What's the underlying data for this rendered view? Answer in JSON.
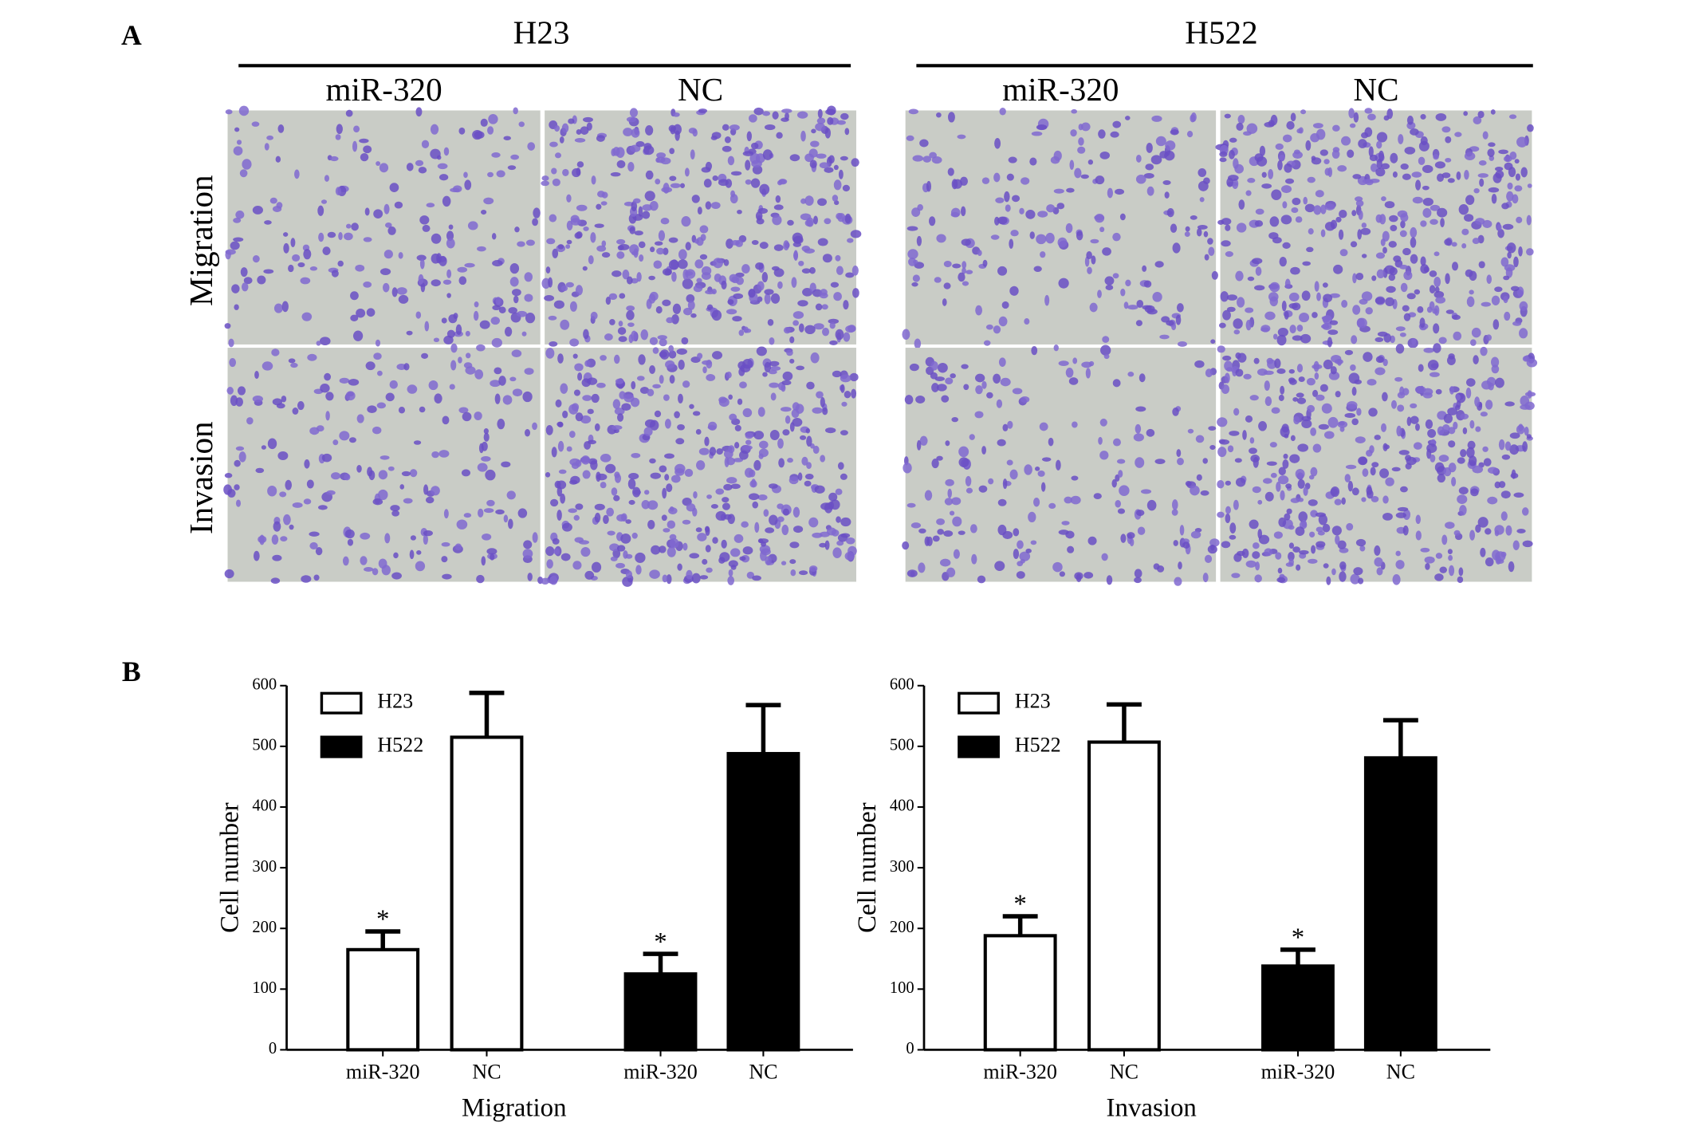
{
  "panel_a": {
    "label": "A",
    "groups": [
      {
        "title": "H23",
        "columns": [
          "miR-320",
          "NC"
        ]
      },
      {
        "title": "H522",
        "columns": [
          "miR-320",
          "NC"
        ]
      }
    ],
    "rows": [
      "Migration",
      "Invasion"
    ]
  },
  "panel_b": {
    "label": "B"
  },
  "chart_data": [
    {
      "type": "bar",
      "xlabel": "Migration",
      "ylabel": "Cell number",
      "categories": [
        "miR-320",
        "NC",
        "miR-320",
        "NC"
      ],
      "ylim": [
        0,
        600
      ],
      "yticks": [
        0,
        100,
        200,
        300,
        400,
        500,
        600
      ],
      "legend": "upper left",
      "series": [
        {
          "name": "H23",
          "color": "#ffffff",
          "values": [
            165,
            515,
            null,
            null
          ],
          "errors": [
            30,
            73,
            null,
            null
          ],
          "significance": [
            "*",
            null,
            null,
            null
          ]
        },
        {
          "name": "H522",
          "color": "#000000",
          "values": [
            null,
            null,
            125,
            488
          ],
          "errors": [
            null,
            null,
            33,
            80
          ],
          "significance": [
            null,
            null,
            "*",
            null
          ]
        }
      ]
    },
    {
      "type": "bar",
      "xlabel": "Invasion",
      "ylabel": "Cell number",
      "categories": [
        "miR-320",
        "NC",
        "miR-320",
        "NC"
      ],
      "ylim": [
        0,
        600
      ],
      "yticks": [
        0,
        100,
        200,
        300,
        400,
        500,
        600
      ],
      "legend": "upper left",
      "series": [
        {
          "name": "H23",
          "color": "#ffffff",
          "values": [
            188,
            507,
            null,
            null
          ],
          "errors": [
            32,
            62,
            null,
            null
          ],
          "significance": [
            "*",
            null,
            null,
            null
          ]
        },
        {
          "name": "H522",
          "color": "#000000",
          "values": [
            null,
            null,
            138,
            481
          ],
          "errors": [
            null,
            null,
            27,
            62
          ],
          "significance": [
            null,
            null,
            "*",
            null
          ]
        }
      ]
    }
  ]
}
